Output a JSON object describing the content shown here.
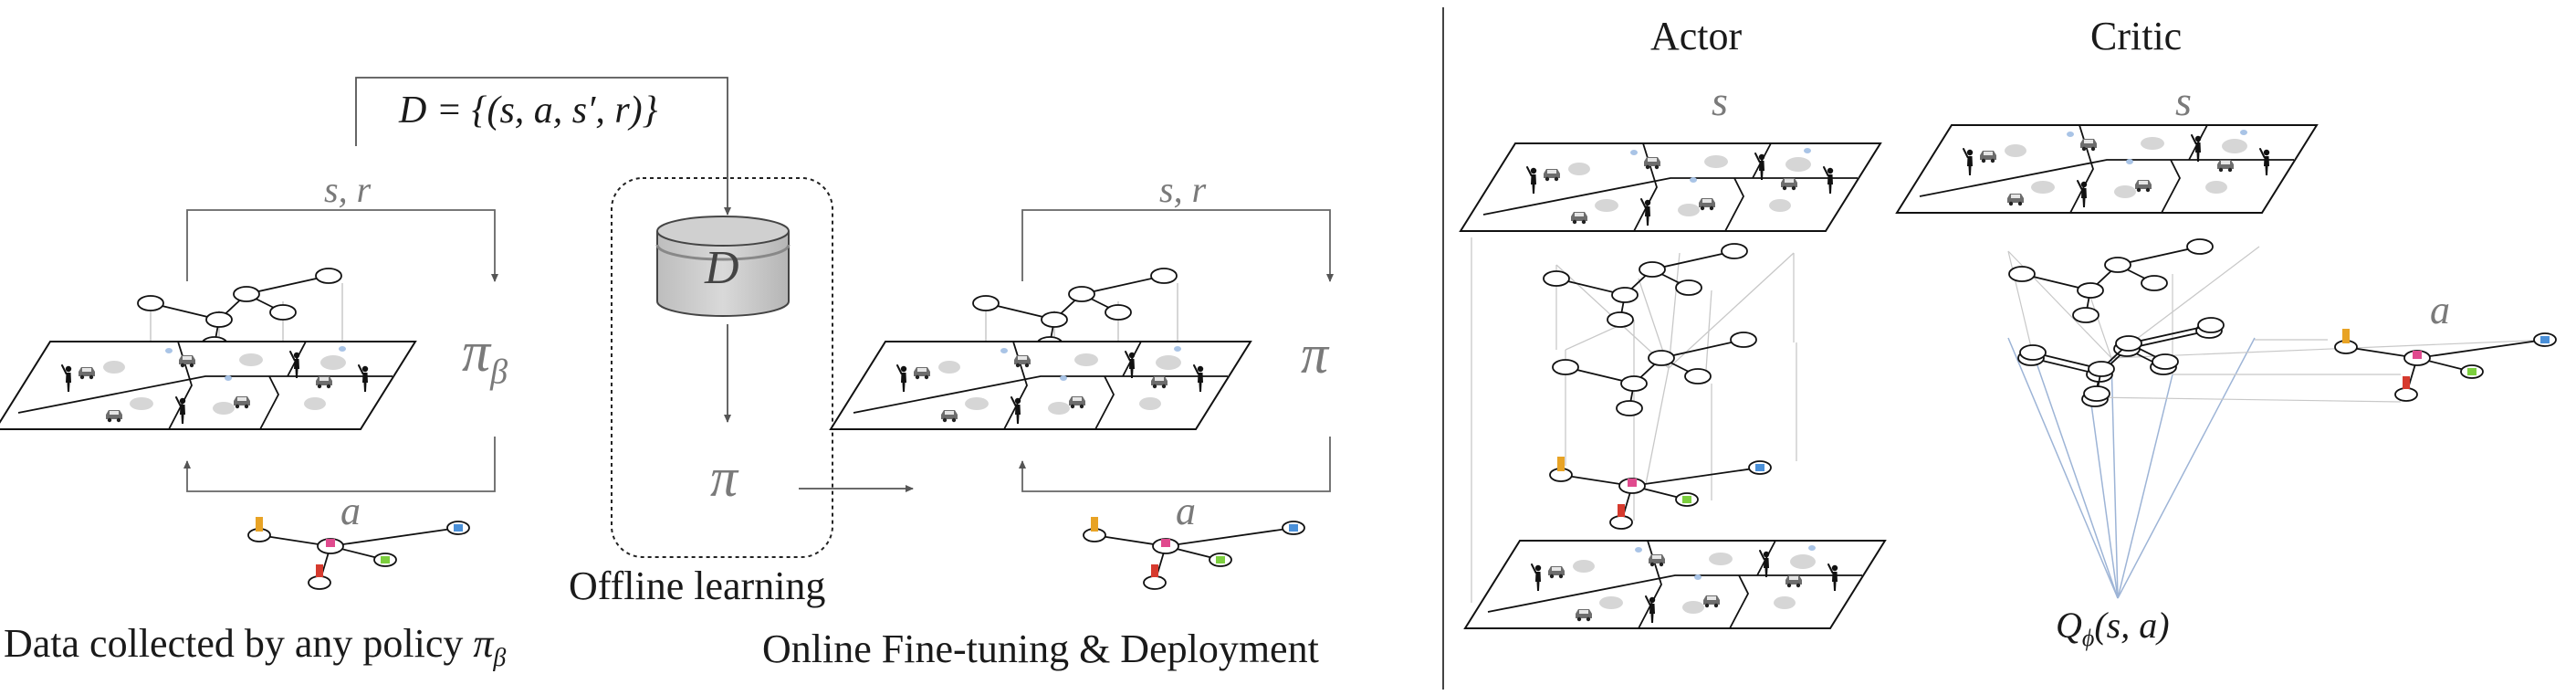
{
  "left": {
    "dataset_formula": "D = {(s, a, s′, r)}",
    "loop_left_label": "s, r",
    "loop_right_label": "s, r",
    "behavior_policy": "πβ",
    "behavior_policy_base": "π",
    "behavior_policy_sub": "β",
    "action_left": "a",
    "action_right": "a",
    "db_label": "D",
    "offline_policy": "π",
    "online_policy": "π",
    "offline_caption": "Offline learning",
    "data_caption": "Data collected by any policy",
    "data_caption_policy": "π",
    "data_caption_sub": "β",
    "online_caption": "Online Fine-tuning & Deployment"
  },
  "right": {
    "actor_title": "Actor",
    "critic_title": "Critic",
    "actor_state": "s",
    "critic_state": "s",
    "critic_action": "a",
    "q_label": "Qϕ(s, a)",
    "q_base": "Q",
    "q_sub": "ϕ",
    "q_args": "(s, a)"
  },
  "colors": {
    "node_orange": "#e8a325",
    "node_pink": "#e04a8e",
    "node_red": "#d63a2e",
    "node_green": "#7ccf3e",
    "node_blue": "#4a90d9",
    "critic_lines": "#9db4d6",
    "gray_disc": "#d6d6d6"
  }
}
